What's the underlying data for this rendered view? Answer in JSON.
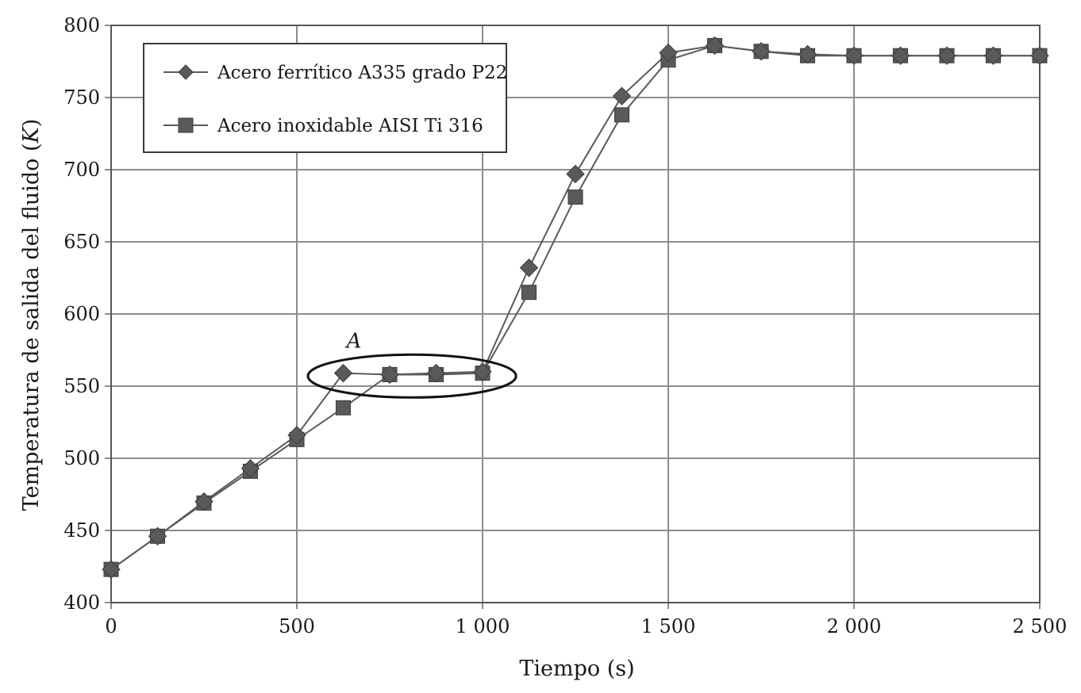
{
  "chart_data": {
    "type": "line",
    "title": "",
    "xlabel": "Tiempo (s)",
    "ylabel": "Temperatura de salida del fluido (K)",
    "xlim": [
      0,
      2500
    ],
    "ylim": [
      400,
      800
    ],
    "x_ticks": [
      0,
      500,
      1000,
      1500,
      2000,
      2500
    ],
    "x_tick_labels": [
      "0",
      "500",
      "1 000",
      "1 500",
      "2 000",
      "2 500"
    ],
    "y_ticks": [
      400,
      450,
      500,
      550,
      600,
      650,
      700,
      750,
      800
    ],
    "y_tick_labels": [
      "400",
      "450",
      "500",
      "550",
      "600",
      "650",
      "700",
      "750",
      "800"
    ],
    "grid": true,
    "legend_position": "top-left",
    "x": [
      0,
      125,
      250,
      375,
      500,
      625,
      750,
      875,
      1000,
      1125,
      1250,
      1375,
      1500,
      1625,
      1750,
      1875,
      2000,
      2125,
      2250,
      2375,
      2500
    ],
    "series": [
      {
        "name": "Acero ferrítico A335 grado P22",
        "marker": "diamond",
        "color": "#5a5a5a",
        "values": [
          423,
          446,
          470,
          493,
          516,
          559,
          558,
          559,
          560,
          632,
          697,
          751,
          781,
          786,
          782,
          780,
          779,
          779,
          779,
          779,
          779
        ]
      },
      {
        "name": "Acero inoxidable AISI Ti 316",
        "marker": "square",
        "color": "#5a5a5a",
        "values": [
          423,
          446,
          469,
          491,
          513,
          535,
          558,
          558,
          559,
          615,
          681,
          738,
          776,
          786,
          782,
          779,
          779,
          779,
          779,
          779,
          779
        ]
      }
    ],
    "annotations": [
      {
        "label": "A",
        "shape": "ellipse",
        "x_range": [
          530,
          1090
        ],
        "y_center": 557
      }
    ]
  }
}
